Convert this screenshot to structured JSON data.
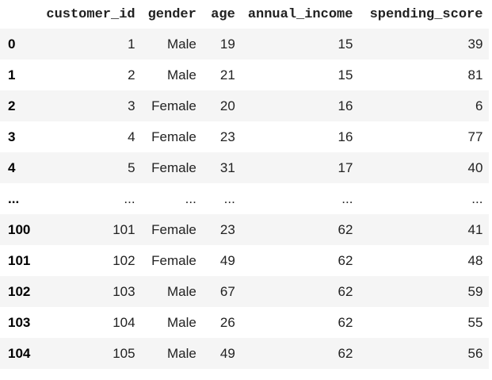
{
  "table": {
    "columns": [
      "",
      "customer_id",
      "gender",
      "age",
      "annual_income",
      "spending_score"
    ],
    "rows": [
      {
        "index": "0",
        "customer_id": "1",
        "gender": "Male",
        "age": "19",
        "annual_income": "15",
        "spending_score": "39"
      },
      {
        "index": "1",
        "customer_id": "2",
        "gender": "Male",
        "age": "21",
        "annual_income": "15",
        "spending_score": "81"
      },
      {
        "index": "2",
        "customer_id": "3",
        "gender": "Female",
        "age": "20",
        "annual_income": "16",
        "spending_score": "6"
      },
      {
        "index": "3",
        "customer_id": "4",
        "gender": "Female",
        "age": "23",
        "annual_income": "16",
        "spending_score": "77"
      },
      {
        "index": "4",
        "customer_id": "5",
        "gender": "Female",
        "age": "31",
        "annual_income": "17",
        "spending_score": "40"
      },
      {
        "index": "...",
        "customer_id": "...",
        "gender": "...",
        "age": "...",
        "annual_income": "...",
        "spending_score": "..."
      },
      {
        "index": "100",
        "customer_id": "101",
        "gender": "Female",
        "age": "23",
        "annual_income": "62",
        "spending_score": "41"
      },
      {
        "index": "101",
        "customer_id": "102",
        "gender": "Female",
        "age": "49",
        "annual_income": "62",
        "spending_score": "48"
      },
      {
        "index": "102",
        "customer_id": "103",
        "gender": "Male",
        "age": "67",
        "annual_income": "62",
        "spending_score": "59"
      },
      {
        "index": "103",
        "customer_id": "104",
        "gender": "Male",
        "age": "26",
        "annual_income": "62",
        "spending_score": "55"
      },
      {
        "index": "104",
        "customer_id": "105",
        "gender": "Male",
        "age": "49",
        "annual_income": "62",
        "spending_score": "56"
      }
    ]
  },
  "colors": {
    "row_odd": "#f5f5f5",
    "row_even": "#ffffff",
    "text": "#000000"
  }
}
